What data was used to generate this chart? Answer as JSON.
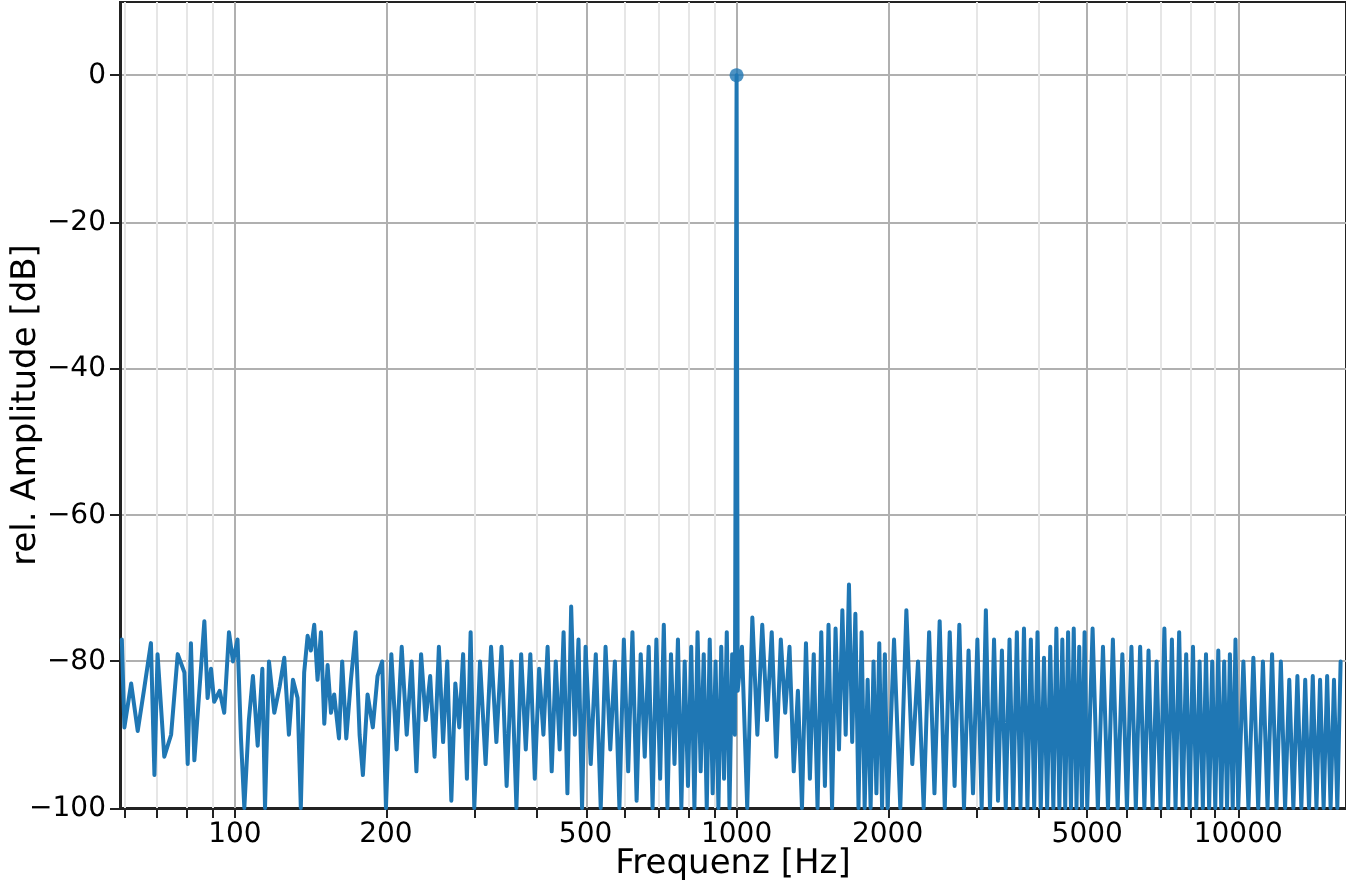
{
  "chart_data": {
    "type": "line",
    "xlabel": "Frequenz [Hz]",
    "ylabel": "rel. Amplitude [dB]",
    "log": "x",
    "grid": true,
    "marker": "none",
    "line_style": "solid",
    "xlim": [
      59,
      16400
    ],
    "ylim": [
      -100,
      10
    ],
    "xticks": [
      {
        "value": 60,
        "label": null
      },
      {
        "value": 70,
        "label": null
      },
      {
        "value": 80,
        "label": null
      },
      {
        "value": 90,
        "label": null
      },
      100,
      200,
      {
        "value": 300,
        "label": null
      },
      {
        "value": 400,
        "label": null
      },
      500,
      {
        "value": 600,
        "label": null
      },
      {
        "value": 700,
        "label": null
      },
      {
        "value": 800,
        "label": null
      },
      {
        "value": 900,
        "label": null
      },
      1000,
      2000,
      {
        "value": 3000,
        "label": null
      },
      {
        "value": 4000,
        "label": null
      },
      5000,
      {
        "value": 6000,
        "label": null
      },
      {
        "value": 7000,
        "label": null
      },
      {
        "value": 8000,
        "label": null
      },
      {
        "value": 9000,
        "label": null
      },
      10000
    ],
    "yticks": [
      -100,
      -80,
      -60,
      -40,
      -20,
      0
    ],
    "series": [
      {
        "color": "#1f77b4",
        "x": [
          59.5,
          60.2,
          62.1,
          64,
          66,
          68,
          69.1,
          70.1,
          72.3,
          74.6,
          76.9,
          79.3,
          80.5,
          81.7,
          83,
          86.9,
          88.2,
          89.6,
          90.9,
          93.2,
          95.2,
          97.3,
          99.1,
          101.2,
          102.8,
          104.4,
          106.6,
          108.6,
          111,
          113.4,
          114.8,
          116.9,
          119.8,
          122.7,
          125.4,
          128.1,
          130.5,
          133.3,
          135.3,
          137.4,
          139.6,
          141.7,
          143.9,
          146.1,
          148.4,
          150.7,
          153,
          155.4,
          157.7,
          161.2,
          163.6,
          166.7,
          170.3,
          174,
          177.2,
          179.9,
          183.8,
          188.3,
          192.4,
          196.6,
          200,
          205,
          210,
          215,
          220,
          225,
          230,
          235,
          240,
          245,
          250,
          255,
          260,
          265,
          270,
          275,
          280,
          285,
          290,
          295,
          300,
          308,
          316,
          324,
          332,
          340,
          348,
          356,
          364,
          372,
          380,
          388,
          396,
          404,
          412,
          420,
          428,
          436,
          444,
          452,
          460,
          468,
          476,
          484,
          492,
          500,
          512,
          524,
          536,
          548,
          560,
          572,
          584,
          596,
          608,
          620,
          632,
          644,
          656,
          668,
          680,
          692,
          704,
          716,
          728,
          740,
          752,
          764,
          776,
          788,
          800,
          812,
          824,
          836,
          848,
          860,
          872,
          884,
          896,
          908,
          920,
          932,
          944,
          956,
          968,
          980,
          992,
          1000,
          1005,
          1025,
          1050,
          1075,
          1100,
          1125,
          1150,
          1175,
          1200,
          1225,
          1250,
          1275,
          1300,
          1325,
          1350,
          1375,
          1400,
          1425,
          1450,
          1475,
          1500,
          1525,
          1550,
          1575,
          1600,
          1625,
          1650,
          1675,
          1700,
          1725,
          1750,
          1775,
          1800,
          1825,
          1850,
          1875,
          1900,
          1925,
          1950,
          1975,
          2000,
          2060,
          2120,
          2180,
          2240,
          2300,
          2360,
          2420,
          2480,
          2540,
          2600,
          2660,
          2720,
          2780,
          2840,
          2900,
          2960,
          3020,
          3080,
          3140,
          3200,
          3260,
          3320,
          3380,
          3440,
          3500,
          3560,
          3620,
          3680,
          3740,
          3800,
          3860,
          3920,
          3980,
          4040,
          4100,
          4160,
          4220,
          4280,
          4340,
          4400,
          4460,
          4520,
          4580,
          4640,
          4700,
          4760,
          4820,
          4880,
          4940,
          5000,
          5125,
          5250,
          5375,
          5500,
          5625,
          5750,
          5875,
          6000,
          6125,
          6250,
          6375,
          6500,
          6625,
          6750,
          6875,
          7000,
          7125,
          7250,
          7375,
          7500,
          7625,
          7750,
          7875,
          8000,
          8125,
          8250,
          8375,
          8500,
          8625,
          8750,
          8875,
          9000,
          9125,
          9250,
          9375,
          9500,
          9625,
          9750,
          9875,
          10000,
          10240,
          10480,
          10720,
          10960,
          11200,
          11440,
          11680,
          11920,
          12160,
          12400,
          12640,
          12880,
          13120,
          13360,
          13600,
          13840,
          14080,
          14320,
          14560,
          14800,
          15040,
          15280,
          15520,
          15760,
          16000
        ],
        "values": [
          -77,
          -89,
          -83,
          -89.5,
          -83.5,
          -77.5,
          -95.5,
          -79,
          -93,
          -90,
          -79,
          -81.5,
          -94,
          -77.5,
          -93.5,
          -74.5,
          -85,
          -81,
          -85.5,
          -84,
          -87,
          -76,
          -80,
          -77,
          -90.5,
          -100,
          -88,
          -82,
          -91.5,
          -81,
          -100,
          -80,
          -87,
          -83.5,
          -79.5,
          -90,
          -82.5,
          -85,
          -100,
          -81.5,
          -76.5,
          -78.5,
          -75,
          -82.5,
          -76,
          -88.5,
          -80.5,
          -87,
          -84.5,
          -90.5,
          -80,
          -90.5,
          -82.5,
          -76,
          -90,
          -95.5,
          -84.5,
          -89,
          -82,
          -80,
          -100,
          -79,
          -92,
          -78,
          -90,
          -80,
          -95,
          -79,
          -88,
          -82,
          -93,
          -78,
          -91,
          -80,
          -99,
          -83,
          -89,
          -79,
          -96,
          -76,
          -100,
          -80,
          -94,
          -78,
          -91,
          -78,
          -97,
          -80,
          -100,
          -79,
          -92,
          -79,
          -96,
          -81,
          -90,
          -78,
          -95,
          -80,
          -92,
          -76,
          -98,
          -72.5,
          -90,
          -77,
          -100,
          -78,
          -94,
          -79,
          -100,
          -78,
          -92,
          -80,
          -100,
          -77,
          -95,
          -76,
          -99,
          -79,
          -93,
          -78,
          -100,
          -77,
          -96,
          -75,
          -100,
          -79,
          -94,
          -77,
          -100,
          -80,
          -97,
          -78,
          -100,
          -76,
          -95,
          -79,
          -100,
          -77,
          -98,
          -80,
          -100,
          -78,
          -96,
          -76,
          -100,
          -79,
          -90,
          0,
          -84,
          -78,
          -100,
          -74,
          -90,
          -75,
          -88,
          -76,
          -93,
          -77,
          -87,
          -78,
          -95,
          -84,
          -100,
          -77.5,
          -96,
          -79,
          -100,
          -76,
          -97,
          -75,
          -100,
          -75.5,
          -92,
          -73,
          -90,
          -69.5,
          -91,
          -73.5,
          -100,
          -76,
          -100,
          -82.5,
          -100,
          -80,
          -98,
          -77.5,
          -100,
          -79,
          -100,
          -77,
          -100,
          -73,
          -94,
          -80,
          -100,
          -76,
          -98,
          -74.5,
          -100,
          -76,
          -97,
          -75,
          -100,
          -78.5,
          -98,
          -77,
          -100,
          -73,
          -100,
          -77,
          -99,
          -78.5,
          -100,
          -77,
          -100,
          -76,
          -100,
          -75.5,
          -100,
          -77,
          -100,
          -76,
          -100,
          -79.5,
          -100,
          -78,
          -100,
          -75.5,
          -100,
          -77,
          -100,
          -76,
          -100,
          -75.5,
          -100,
          -78,
          -100,
          -76,
          -100,
          -75.5,
          -100,
          -78,
          -100,
          -77,
          -100,
          -79,
          -100,
          -78,
          -100,
          -78,
          -100,
          -78.5,
          -100,
          -80,
          -100,
          -75.5,
          -100,
          -77,
          -100,
          -76,
          -100,
          -79,
          -100,
          -78,
          -100,
          -80,
          -100,
          -79,
          -100,
          -80,
          -100,
          -78.5,
          -100,
          -80,
          -100,
          -79,
          -100,
          -77,
          -100,
          -80,
          -100,
          -79.5,
          -100,
          -80,
          -100,
          -79,
          -100,
          -80,
          -100,
          -82.5,
          -100,
          -82,
          -100,
          -82.5,
          -100,
          -82,
          -100,
          -82.5,
          -100,
          -82,
          -100,
          -82.5,
          -100,
          -80
        ]
      },
      {
        "type": "scatter",
        "color": "#1f77b4",
        "marker": "circle",
        "x": [
          1000
        ],
        "values": [
          0
        ]
      }
    ]
  }
}
